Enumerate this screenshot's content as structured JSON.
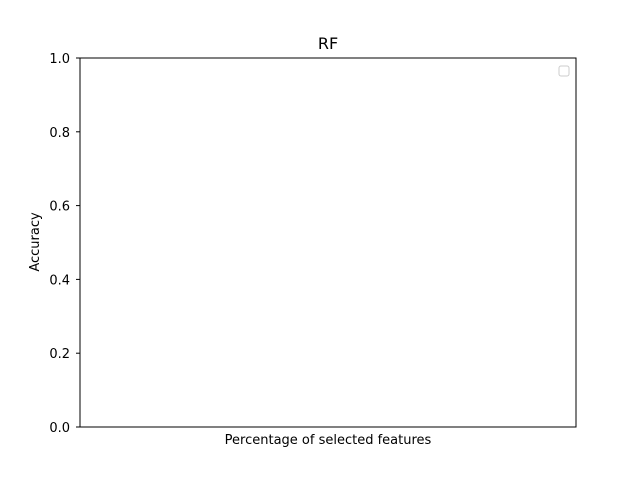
{
  "chart_data": {
    "type": "line",
    "title": "RF",
    "xlabel": "Percentage of selected features",
    "ylabel": "Accuracy",
    "ylim": [
      0,
      1
    ],
    "y_ticks": [
      "0.0",
      "0.2",
      "0.4",
      "0.6",
      "0.8",
      "1.0"
    ],
    "x_ticks": [],
    "series": [],
    "grid": false,
    "legend": {
      "placement": "top-right",
      "entries": []
    }
  }
}
